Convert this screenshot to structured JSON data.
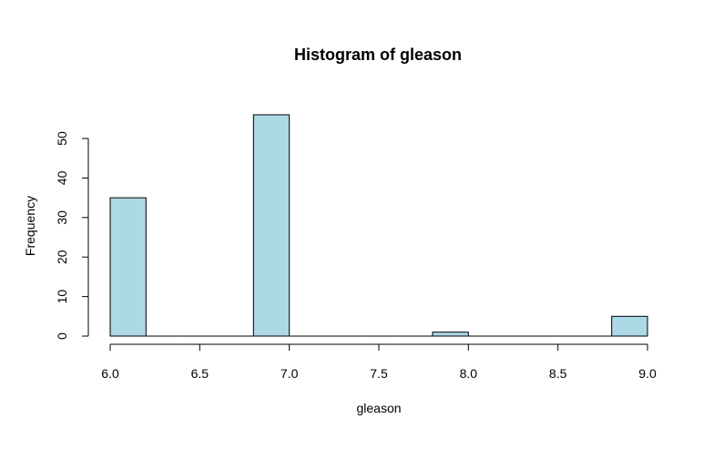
{
  "chart_data": {
    "type": "bar",
    "title": "Histogram of gleason",
    "xlabel": "gleason",
    "ylabel": "Frequency",
    "bins": [
      {
        "start": 6.0,
        "end": 6.2,
        "count": 35
      },
      {
        "start": 6.2,
        "end": 6.4,
        "count": 0
      },
      {
        "start": 6.4,
        "end": 6.6,
        "count": 0
      },
      {
        "start": 6.6,
        "end": 6.8,
        "count": 0
      },
      {
        "start": 6.8,
        "end": 7.0,
        "count": 56
      },
      {
        "start": 7.0,
        "end": 7.2,
        "count": 0
      },
      {
        "start": 7.2,
        "end": 7.4,
        "count": 0
      },
      {
        "start": 7.4,
        "end": 7.6,
        "count": 0
      },
      {
        "start": 7.6,
        "end": 7.8,
        "count": 0
      },
      {
        "start": 7.8,
        "end": 8.0,
        "count": 1
      },
      {
        "start": 8.0,
        "end": 8.2,
        "count": 0
      },
      {
        "start": 8.2,
        "end": 8.4,
        "count": 0
      },
      {
        "start": 8.4,
        "end": 8.6,
        "count": 0
      },
      {
        "start": 8.6,
        "end": 8.8,
        "count": 0
      },
      {
        "start": 8.8,
        "end": 9.0,
        "count": 5
      }
    ],
    "xticks": [
      "6.0",
      "6.5",
      "7.0",
      "7.5",
      "8.0",
      "8.5",
      "9.0"
    ],
    "yticks": [
      "0",
      "10",
      "20",
      "30",
      "40",
      "50"
    ],
    "xlim": [
      6.0,
      9.0
    ],
    "ylim": [
      0,
      56
    ],
    "bar_color": "#add8e6",
    "grid": false
  }
}
